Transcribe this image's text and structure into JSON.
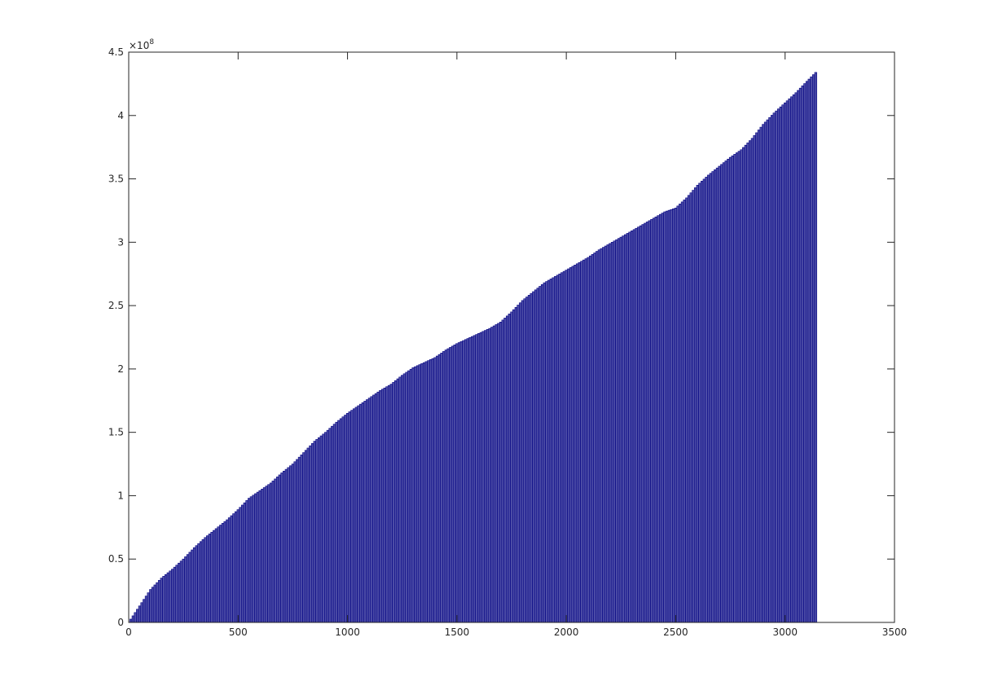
{
  "chart_data": {
    "type": "bar",
    "title": "",
    "xlabel": "",
    "ylabel": "",
    "xlim": [
      0,
      3500
    ],
    "ylim": [
      0,
      450000000
    ],
    "x_ticks": [
      0,
      500,
      1000,
      1500,
      2000,
      2500,
      3000,
      3500
    ],
    "x_tick_labels": [
      "0",
      "500",
      "1000",
      "1500",
      "2000",
      "2500",
      "3000",
      "3500"
    ],
    "y_ticks": [
      0,
      50000000,
      100000000,
      150000000,
      200000000,
      250000000,
      300000000,
      350000000,
      400000000,
      450000000
    ],
    "y_tick_labels": [
      "0",
      "0.5",
      "1",
      "1.5",
      "2",
      "2.5",
      "3",
      "3.5",
      "4",
      "4.5"
    ],
    "y_exponent_label": "×10",
    "y_exponent_power": "8",
    "grid": false,
    "bar_color": "#4c4ca6",
    "bar_edge_color": "#000080",
    "series": [
      {
        "x": [
          0,
          50,
          100,
          150,
          200,
          250,
          300,
          350,
          400,
          450,
          500,
          550,
          600,
          650,
          700,
          750,
          800,
          850,
          900,
          950,
          1000,
          1050,
          1100,
          1150,
          1200,
          1250,
          1300,
          1350,
          1400,
          1450,
          1500,
          1550,
          1600,
          1650,
          1700,
          1750,
          1800,
          1850,
          1900,
          1950,
          2000,
          2050,
          2100,
          2150,
          2200,
          2250,
          2300,
          2350,
          2400,
          2450,
          2500,
          2550,
          2600,
          2650,
          2700,
          2750,
          2800,
          2850,
          2900,
          2950,
          3000,
          3050,
          3100,
          3140
        ],
        "y": [
          0,
          13000000,
          26000000,
          35000000,
          42000000,
          50000000,
          59000000,
          67000000,
          74000000,
          81000000,
          89000000,
          98000000,
          104000000,
          110000000,
          118000000,
          125000000,
          134000000,
          143000000,
          150000000,
          158000000,
          165000000,
          171000000,
          177000000,
          183000000,
          188000000,
          195000000,
          201000000,
          205000000,
          209000000,
          215000000,
          220000000,
          224000000,
          228000000,
          232000000,
          237000000,
          245000000,
          254000000,
          261000000,
          268000000,
          273000000,
          278000000,
          283000000,
          288000000,
          294000000,
          299000000,
          304000000,
          309000000,
          314000000,
          319000000,
          324000000,
          327000000,
          335000000,
          345000000,
          353000000,
          360000000,
          367000000,
          373000000,
          382000000,
          393000000,
          402000000,
          410000000,
          418000000,
          427000000,
          434000000
        ]
      }
    ]
  }
}
